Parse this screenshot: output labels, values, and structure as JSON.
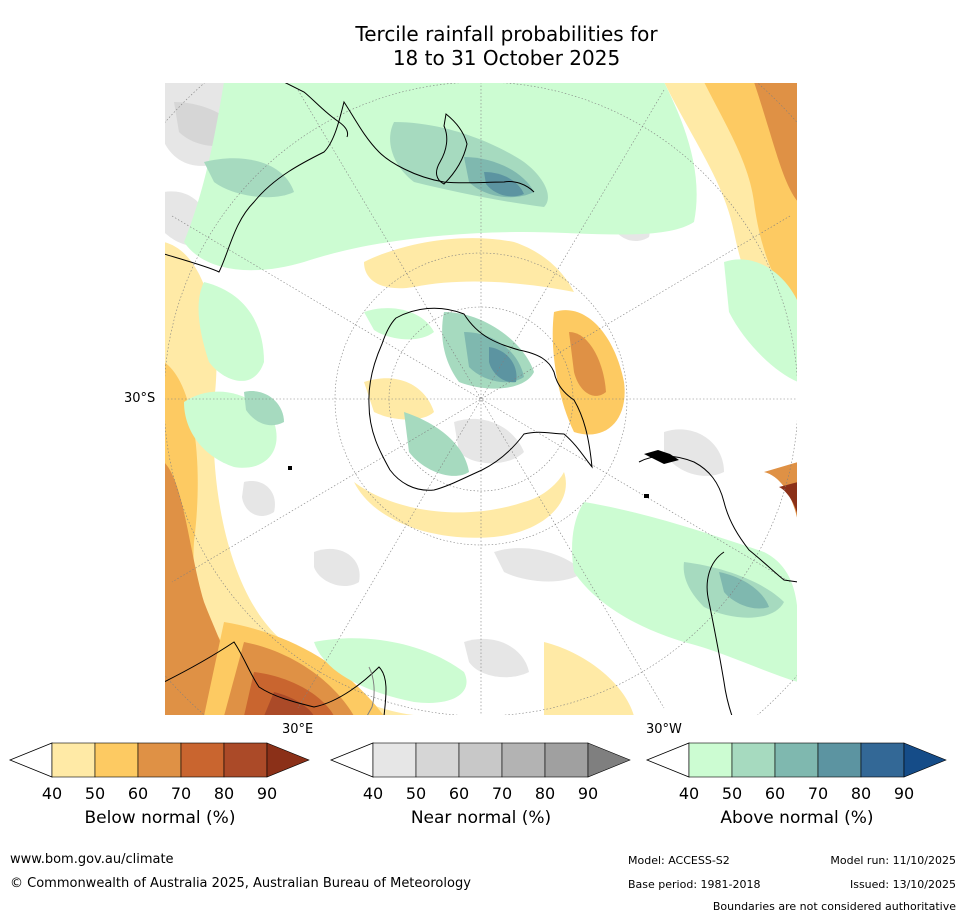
{
  "title": {
    "line1": "Tercile rainfall probabilities for",
    "line2": "18 to 31 October 2025"
  },
  "map": {
    "lat_label": "30°S",
    "lon_label_east": "30°E",
    "lon_label_west": "30°W",
    "colors": {
      "ocean": "#ffffff",
      "coast": "#000000",
      "border": "#808080",
      "grid": "#808080"
    }
  },
  "legends": {
    "below": {
      "title": "Below normal (%)",
      "ticks": [
        "40",
        "50",
        "60",
        "70",
        "80",
        "90"
      ],
      "colors": [
        "#ffeaa6",
        "#fdca62",
        "#df9145",
        "#c9652f",
        "#ab4a28",
        "#8b3018"
      ]
    },
    "near": {
      "title": "Near normal (%)",
      "ticks": [
        "40",
        "50",
        "60",
        "70",
        "80",
        "90"
      ],
      "colors": [
        "#e6e6e6",
        "#d6d6d6",
        "#c8c8c8",
        "#b3b3b3",
        "#a0a0a0",
        "#7f7f7f"
      ]
    },
    "above": {
      "title": "Above normal (%)",
      "ticks": [
        "40",
        "50",
        "60",
        "70",
        "80",
        "90"
      ],
      "colors": [
        "#ccfcd2",
        "#a6dabf",
        "#7fb8af",
        "#5c94a1",
        "#336896",
        "#154c88"
      ]
    }
  },
  "footer": {
    "url": "www.bom.gov.au/climate",
    "copyright": "© Commonwealth of Australia 2025, Australian Bureau of Meteorology",
    "model": "Model: ACCESS-S2",
    "base_period": "Base period: 1981-2018",
    "model_run": "Model run: 11/10/2025",
    "issued": "Issued: 13/10/2025",
    "disclaimer": "Boundaries are not considered authoritative"
  }
}
